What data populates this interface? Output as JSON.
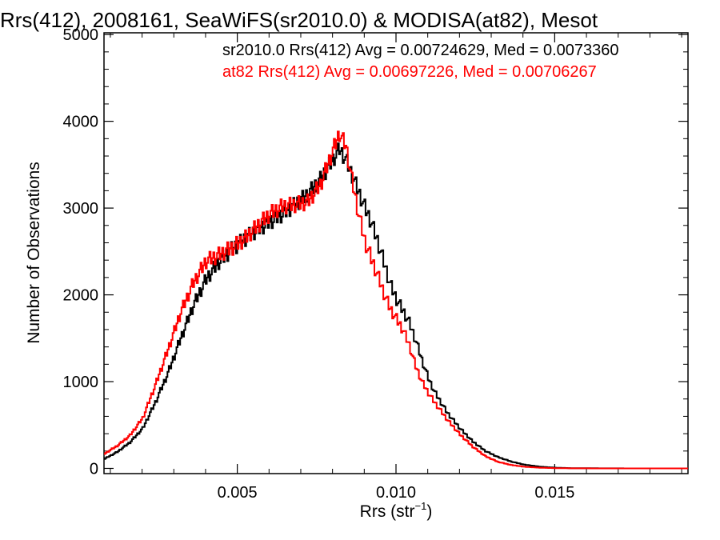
{
  "chart_data": {
    "type": "line",
    "title": "Rrs(412), 2008161, SeaWiFS(sr2010.0) & MODISA(at82), Mesot",
    "xlabel_main": "Rrs (str",
    "xlabel_sup": "−1",
    "xlabel_close": ")",
    "ylabel": "Number of Observations",
    "xlim": [
      0.0008,
      0.0192
    ],
    "ylim": [
      -60,
      5020
    ],
    "xticks": [
      {
        "value": 0.005,
        "label": "0.005"
      },
      {
        "value": 0.01,
        "label": "0.010"
      },
      {
        "value": 0.015,
        "label": "0.015"
      }
    ],
    "yticks": [
      {
        "value": 0,
        "label": "0"
      },
      {
        "value": 1000,
        "label": "1000"
      },
      {
        "value": 2000,
        "label": "2000"
      },
      {
        "value": 3000,
        "label": "3000"
      },
      {
        "value": 4000,
        "label": "4000"
      },
      {
        "value": 5000,
        "label": "5000"
      }
    ],
    "legend": [
      {
        "text": "sr2010.0 Rrs(412) Avg = 0.00724629, Med = 0.0073360",
        "color": "#000000"
      },
      {
        "text": "at82 Rrs(412) Avg = 0.00697226, Med = 0.00706267",
        "color": "#ff0000"
      }
    ],
    "series": [
      {
        "color": "#000000",
        "points": [
          [
            0.0008,
            110
          ],
          [
            0.0012,
            190
          ],
          [
            0.0016,
            300
          ],
          [
            0.002,
            460
          ],
          [
            0.0024,
            760
          ],
          [
            0.0028,
            1100
          ],
          [
            0.0032,
            1500
          ],
          [
            0.0036,
            1880
          ],
          [
            0.004,
            2180
          ],
          [
            0.0044,
            2380
          ],
          [
            0.0048,
            2520
          ],
          [
            0.0052,
            2640
          ],
          [
            0.0056,
            2750
          ],
          [
            0.006,
            2840
          ],
          [
            0.0064,
            2930
          ],
          [
            0.0068,
            3040
          ],
          [
            0.0072,
            3160
          ],
          [
            0.0076,
            3330
          ],
          [
            0.008,
            3560
          ],
          [
            0.0082,
            3680
          ],
          [
            0.0084,
            3560
          ],
          [
            0.0086,
            3380
          ],
          [
            0.0088,
            3190
          ],
          [
            0.009,
            3010
          ],
          [
            0.0092,
            2840
          ],
          [
            0.0094,
            2620
          ],
          [
            0.0096,
            2380
          ],
          [
            0.0098,
            2120
          ],
          [
            0.01,
            1950
          ],
          [
            0.0102,
            1820
          ],
          [
            0.0104,
            1680
          ],
          [
            0.0106,
            1480
          ],
          [
            0.0108,
            1250
          ],
          [
            0.011,
            1040
          ],
          [
            0.0112,
            880
          ],
          [
            0.0116,
            640
          ],
          [
            0.012,
            460
          ],
          [
            0.0124,
            310
          ],
          [
            0.0128,
            200
          ],
          [
            0.0132,
            130
          ],
          [
            0.0136,
            80
          ],
          [
            0.014,
            45
          ],
          [
            0.0145,
            20
          ],
          [
            0.015,
            8
          ],
          [
            0.0155,
            3
          ],
          [
            0.0165,
            1
          ],
          [
            0.0175,
            0
          ],
          [
            0.0192,
            0
          ]
        ]
      },
      {
        "color": "#ff0000",
        "points": [
          [
            0.0008,
            170
          ],
          [
            0.0012,
            260
          ],
          [
            0.0016,
            380
          ],
          [
            0.002,
            580
          ],
          [
            0.0024,
            960
          ],
          [
            0.0028,
            1370
          ],
          [
            0.0032,
            1800
          ],
          [
            0.0036,
            2140
          ],
          [
            0.004,
            2390
          ],
          [
            0.0044,
            2460
          ],
          [
            0.0048,
            2540
          ],
          [
            0.0052,
            2640
          ],
          [
            0.0056,
            2790
          ],
          [
            0.006,
            2930
          ],
          [
            0.0064,
            3020
          ],
          [
            0.0068,
            3040
          ],
          [
            0.0072,
            3070
          ],
          [
            0.0076,
            3270
          ],
          [
            0.008,
            3670
          ],
          [
            0.0082,
            3860
          ],
          [
            0.0084,
            3720
          ],
          [
            0.0086,
            3320
          ],
          [
            0.0088,
            2940
          ],
          [
            0.009,
            2620
          ],
          [
            0.0092,
            2420
          ],
          [
            0.0094,
            2230
          ],
          [
            0.0096,
            2020
          ],
          [
            0.0098,
            1840
          ],
          [
            0.01,
            1720
          ],
          [
            0.0102,
            1600
          ],
          [
            0.0104,
            1420
          ],
          [
            0.0106,
            1180
          ],
          [
            0.0108,
            1000
          ],
          [
            0.011,
            870
          ],
          [
            0.0112,
            760
          ],
          [
            0.0116,
            560
          ],
          [
            0.012,
            390
          ],
          [
            0.0124,
            250
          ],
          [
            0.0128,
            140
          ],
          [
            0.0132,
            75
          ],
          [
            0.0136,
            40
          ],
          [
            0.014,
            20
          ],
          [
            0.0145,
            8
          ],
          [
            0.015,
            3
          ],
          [
            0.0155,
            1
          ],
          [
            0.0165,
            0
          ],
          [
            0.0175,
            0
          ],
          [
            0.0192,
            0
          ]
        ]
      }
    ]
  }
}
